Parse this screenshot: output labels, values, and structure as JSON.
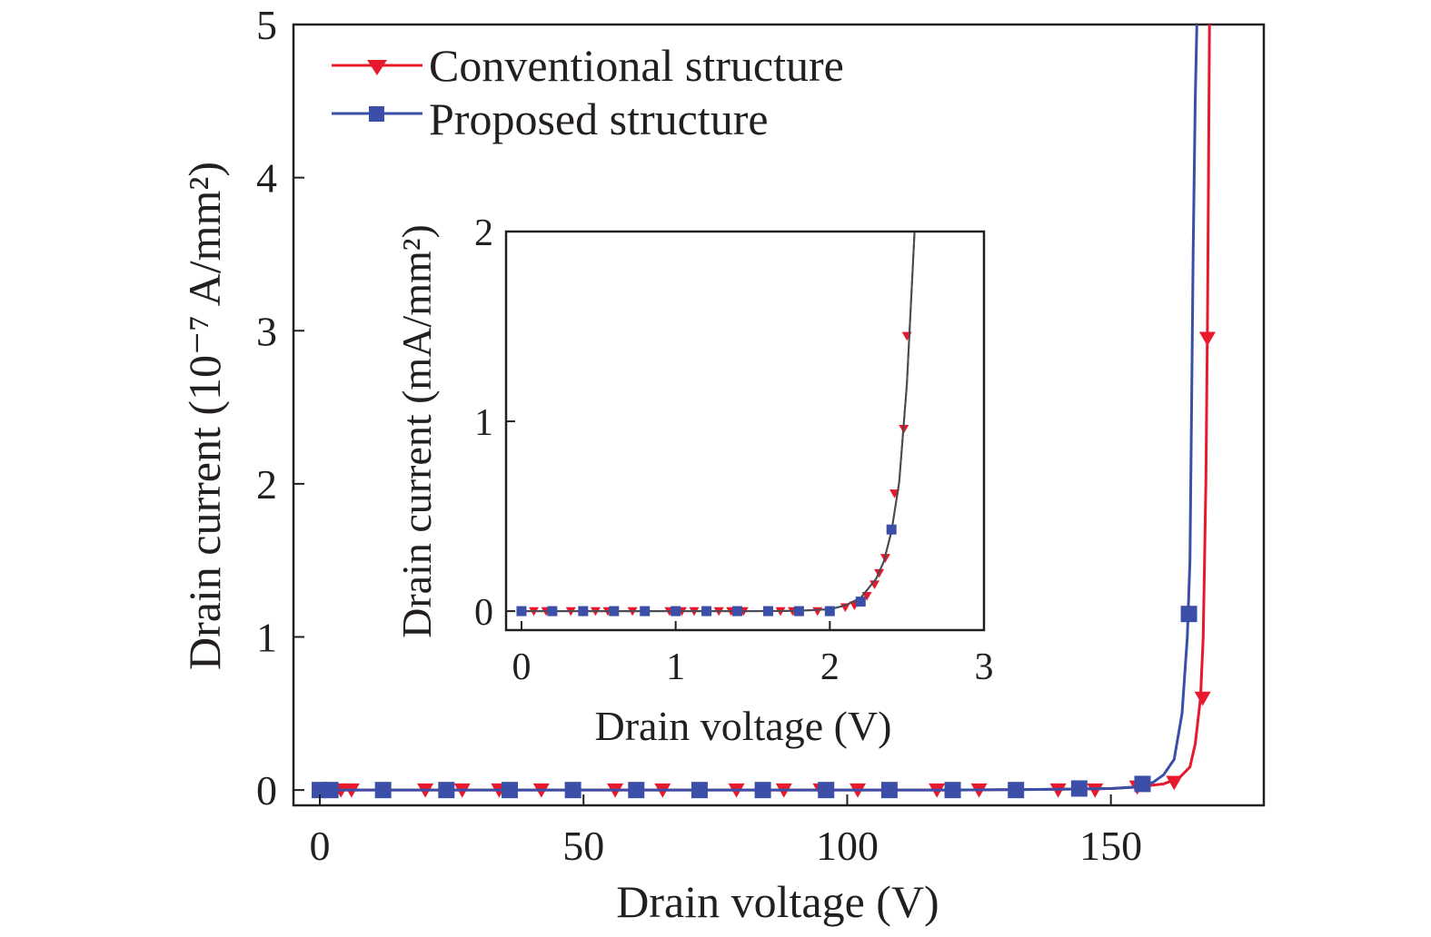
{
  "chart_data": [
    {
      "panel": "main",
      "type": "line",
      "xlabel": "Drain voltage (V)",
      "ylabel": "Drain current (10⁻⁷ A/mm²)",
      "xlim": [
        -5,
        179
      ],
      "ylim": [
        -0.1,
        5
      ],
      "xticks": [
        0,
        50,
        100,
        150
      ],
      "yticks": [
        0,
        1,
        2,
        3,
        4,
        5
      ],
      "grid": false,
      "legend_position": "top-left",
      "series": [
        {
          "name": "Conventional structure",
          "color": "#e8192c",
          "marker": "triangle-down",
          "line_x": [
            0,
            20,
            40,
            60,
            80,
            100,
            120,
            140,
            150,
            155,
            160,
            163,
            165,
            166,
            167,
            167.5,
            168,
            168.3,
            168.5,
            168.7,
            169
          ],
          "line_y": [
            0,
            0,
            0,
            0,
            0,
            0,
            0,
            0.005,
            0.01,
            0.02,
            0.04,
            0.08,
            0.15,
            0.3,
            0.6,
            1.0,
            2.0,
            3.0,
            4.0,
            5.0,
            5.0
          ],
          "marker_x": [
            0,
            2,
            4,
            6,
            20,
            27,
            34,
            42,
            56,
            65,
            79,
            88,
            95,
            102,
            117,
            125,
            140,
            147,
            155,
            162,
            167.4,
            168.3
          ],
          "marker_y": [
            0,
            0,
            0,
            0,
            0,
            0,
            0,
            0,
            0,
            0,
            0,
            0,
            0,
            0,
            0,
            0,
            0,
            0,
            0.02,
            0.05,
            0.6,
            2.95
          ]
        },
        {
          "name": "Proposed structure",
          "color": "#3b4fa8",
          "marker": "square",
          "line_x": [
            0,
            20,
            40,
            60,
            80,
            100,
            120,
            140,
            150,
            155,
            158,
            160,
            162,
            163.5,
            164.5,
            165,
            165.3,
            165.6,
            166,
            166.3
          ],
          "line_y": [
            0,
            0,
            0,
            0,
            0,
            0,
            0,
            0.005,
            0.01,
            0.02,
            0.05,
            0.1,
            0.2,
            0.5,
            1.0,
            1.5,
            2.5,
            3.5,
            4.5,
            5.0
          ],
          "marker_x": [
            0,
            2,
            12,
            24,
            36,
            48,
            60,
            72,
            84,
            96,
            108,
            120,
            132,
            144,
            156,
            164.8
          ],
          "marker_y": [
            0,
            0,
            0,
            0,
            0,
            0,
            0,
            0,
            0,
            0,
            0,
            0,
            0,
            0.01,
            0.04,
            1.15
          ]
        }
      ]
    },
    {
      "panel": "inset",
      "type": "line",
      "xlabel": "Drain voltage (V)",
      "ylabel": "Drain current (mA/mm²)",
      "xlim": [
        -0.1,
        3
      ],
      "ylim": [
        -0.1,
        2
      ],
      "xticks": [
        0,
        1,
        2,
        3
      ],
      "yticks": [
        0,
        1,
        2
      ],
      "grid": false,
      "series": [
        {
          "name": "Conventional structure",
          "color": "#e8192c",
          "marker": "triangle-down",
          "line_x": [
            0,
            0.5,
            1.0,
            1.5,
            1.8,
            2.0,
            2.1,
            2.2,
            2.3,
            2.35,
            2.4,
            2.45,
            2.5,
            2.55
          ],
          "line_y": [
            0,
            0,
            0,
            0,
            0.002,
            0.01,
            0.03,
            0.07,
            0.17,
            0.26,
            0.42,
            0.68,
            1.2,
            2.0
          ],
          "marker_x": [
            0.08,
            0.16,
            0.32,
            0.48,
            0.56,
            0.72,
            0.8,
            0.96,
            1.04,
            1.12,
            1.28,
            1.36,
            1.44,
            1.6,
            1.68,
            1.76,
            1.92,
            2.1,
            2.16,
            2.24,
            2.29,
            2.32,
            2.36,
            2.42,
            2.48,
            2.5
          ],
          "marker_y": [
            0,
            0,
            0,
            0,
            0,
            0,
            0,
            0,
            0,
            0,
            0,
            0,
            0,
            0,
            0,
            0,
            0,
            0.02,
            0.03,
            0.08,
            0.14,
            0.2,
            0.28,
            0.62,
            0.96,
            1.45
          ]
        },
        {
          "name": "Proposed structure",
          "color": "#3b4fa8",
          "marker": "square",
          "line_x": [
            0,
            0.5,
            1.0,
            1.5,
            1.8,
            2.0,
            2.1,
            2.2,
            2.3,
            2.35,
            2.4,
            2.45,
            2.5,
            2.55
          ],
          "line_y": [
            0,
            0,
            0,
            0,
            0.002,
            0.01,
            0.03,
            0.07,
            0.17,
            0.26,
            0.42,
            0.68,
            1.2,
            2.0
          ],
          "marker_x": [
            0,
            0.2,
            0.4,
            0.6,
            0.8,
            1.0,
            1.2,
            1.4,
            1.6,
            1.8,
            2.0,
            2.2,
            2.4
          ],
          "marker_y": [
            0,
            0,
            0,
            0,
            0,
            0,
            0,
            0,
            0,
            0,
            0,
            0.05,
            0.43
          ]
        }
      ]
    }
  ]
}
